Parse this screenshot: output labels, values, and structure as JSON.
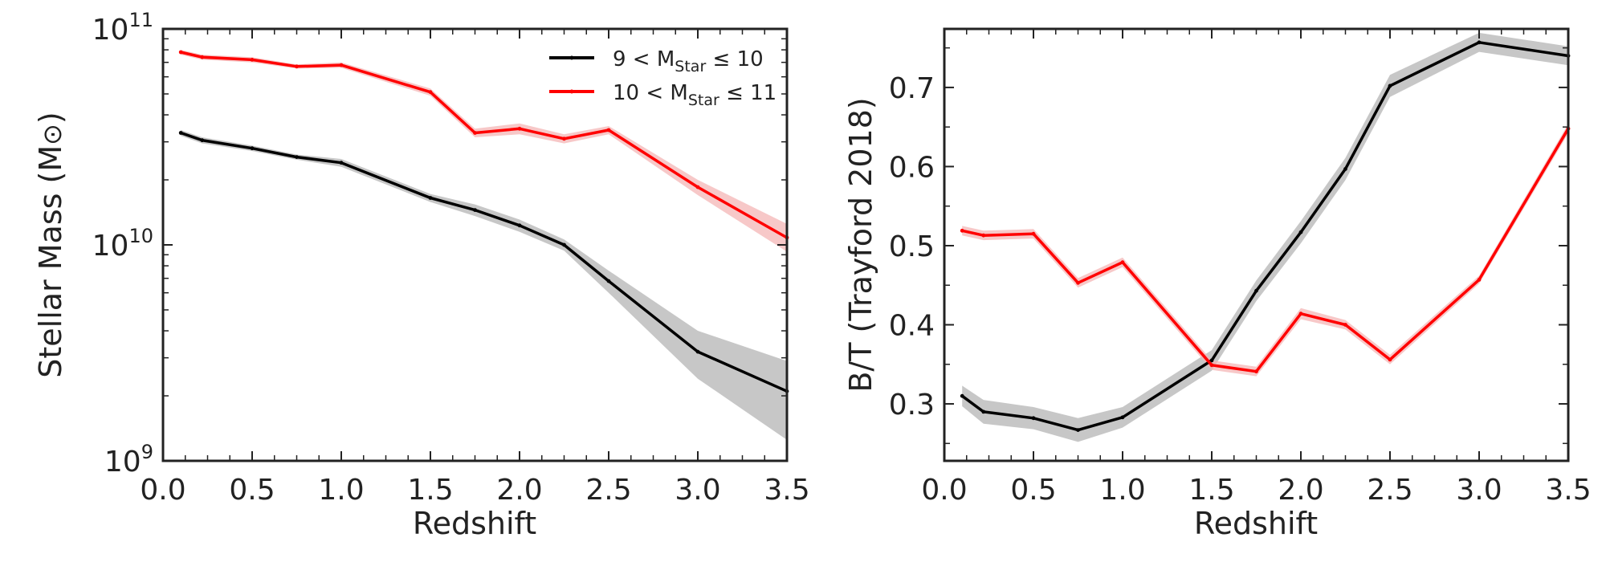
{
  "chart_data": [
    {
      "type": "line",
      "title": "",
      "xlabel": "Redshift",
      "ylabel": "Stellar Mass (M",
      "ylabel_symbol": "⊙",
      "ylabel_close": ")",
      "yscale": "log",
      "xlim": [
        0.0,
        3.5
      ],
      "ylim": [
        1000000000,
        100000000000
      ],
      "x_ticks": [
        0.0,
        0.5,
        1.0,
        1.5,
        2.0,
        2.5,
        3.0,
        3.5
      ],
      "x_tick_labels": [
        "0.0",
        "0.5",
        "1.0",
        "1.5",
        "2.0",
        "2.5",
        "3.0",
        "3.5"
      ],
      "y_ticks": [
        1000000000,
        10000000000,
        100000000000
      ],
      "y_tick_labels": [
        {
          "base": "10",
          "exp": "9"
        },
        {
          "base": "10",
          "exp": "10"
        },
        {
          "base": "10",
          "exp": "11"
        }
      ],
      "legend": {
        "position": "top-right",
        "entries": [
          {
            "pre": "9 < M",
            "sub": "Star",
            "post": " ≤ 10"
          },
          {
            "pre": "10 < M",
            "sub": "Star",
            "post": " ≤ 11"
          }
        ]
      },
      "series": [
        {
          "name": "9 < MStar ≤ 10",
          "color": "#000000",
          "band_color": "#bdbdbd",
          "x": [
            0.1,
            0.22,
            0.5,
            0.75,
            1.0,
            1.5,
            1.75,
            2.0,
            2.25,
            2.5,
            3.0,
            3.5
          ],
          "values": [
            33000000000,
            30500000000,
            28000000000,
            25500000000,
            24000000000,
            16500000000,
            14500000000,
            12300000000,
            10000000000,
            6800000000,
            3200000000,
            2100000000
          ],
          "lower": [
            32000000000,
            29500000000,
            27200000000,
            24800000000,
            23000000000,
            15800000000,
            13600000000,
            11500000000,
            9400000000,
            6000000000,
            2400000000,
            1250000000
          ],
          "upper": [
            34000000000,
            31500000000,
            28800000000,
            26200000000,
            25000000000,
            17200000000,
            15400000000,
            13100000000,
            10600000000,
            7600000000,
            4000000000,
            2900000000
          ]
        },
        {
          "name": "10 < MStar ≤ 11",
          "color": "#ff0000",
          "band_color": "#f4b6b6",
          "x": [
            0.1,
            0.22,
            0.5,
            0.75,
            1.0,
            1.5,
            1.75,
            2.0,
            2.25,
            2.5,
            3.0,
            3.5
          ],
          "values": [
            78000000000,
            74000000000,
            72000000000,
            67000000000,
            68000000000,
            51000000000,
            33000000000,
            34500000000,
            31000000000,
            34000000000,
            18500000000,
            10800000000
          ],
          "lower": [
            76000000000,
            72000000000,
            70000000000,
            65500000000,
            66000000000,
            49000000000,
            31500000000,
            32500000000,
            29500000000,
            32500000000,
            17000000000,
            9300000000
          ],
          "upper": [
            80000000000,
            76000000000,
            74000000000,
            68500000000,
            70000000000,
            53000000000,
            34500000000,
            36500000000,
            32500000000,
            35500000000,
            20000000000,
            12500000000
          ]
        }
      ]
    },
    {
      "type": "line",
      "title": "",
      "xlabel": "Redshift",
      "ylabel": "B/T (Trayford 2018)",
      "yscale": "linear",
      "xlim": [
        0.0,
        3.5
      ],
      "ylim": [
        0.228,
        0.774
      ],
      "x_ticks": [
        0.0,
        0.5,
        1.0,
        1.5,
        2.0,
        2.5,
        3.0,
        3.5
      ],
      "x_tick_labels": [
        "0.0",
        "0.5",
        "1.0",
        "1.5",
        "2.0",
        "2.5",
        "3.0",
        "3.5"
      ],
      "y_ticks": [
        0.3,
        0.4,
        0.5,
        0.6,
        0.7
      ],
      "y_tick_labels": [
        "0.3",
        "0.4",
        "0.5",
        "0.6",
        "0.7"
      ],
      "series": [
        {
          "name": "9 < MStar ≤ 10",
          "color": "#000000",
          "band_color": "#bdbdbd",
          "x": [
            0.1,
            0.22,
            0.5,
            0.75,
            1.0,
            1.5,
            1.75,
            2.0,
            2.25,
            2.5,
            3.0,
            3.5
          ],
          "values": [
            0.31,
            0.29,
            0.282,
            0.267,
            0.283,
            0.355,
            0.443,
            0.517,
            0.597,
            0.702,
            0.757,
            0.74
          ],
          "lower": [
            0.297,
            0.275,
            0.268,
            0.252,
            0.27,
            0.342,
            0.43,
            0.503,
            0.583,
            0.688,
            0.745,
            0.728
          ],
          "upper": [
            0.323,
            0.305,
            0.296,
            0.282,
            0.296,
            0.368,
            0.456,
            0.531,
            0.611,
            0.716,
            0.769,
            0.752
          ]
        },
        {
          "name": "10 < MStar ≤ 11",
          "color": "#ff0000",
          "band_color": "#f4b6b6",
          "x": [
            0.1,
            0.22,
            0.5,
            0.75,
            1.0,
            1.5,
            1.75,
            2.0,
            2.25,
            2.5,
            3.0,
            3.5
          ],
          "values": [
            0.519,
            0.513,
            0.515,
            0.453,
            0.479,
            0.349,
            0.341,
            0.414,
            0.4,
            0.356,
            0.457,
            0.648
          ],
          "lower": [
            0.513,
            0.507,
            0.509,
            0.447,
            0.473,
            0.343,
            0.335,
            0.407,
            0.394,
            0.35,
            0.452,
            0.642
          ],
          "upper": [
            0.525,
            0.519,
            0.521,
            0.459,
            0.485,
            0.355,
            0.347,
            0.421,
            0.406,
            0.362,
            0.462,
            0.654
          ]
        }
      ]
    }
  ]
}
